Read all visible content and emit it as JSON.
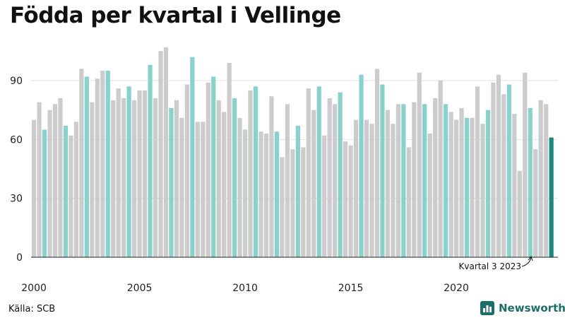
{
  "title": "Födda per kvartal i Vellinge",
  "source": "Källa: SCB",
  "brand": {
    "name": "Newsworthy",
    "icon": "newsworthy-logo-icon"
  },
  "colors": {
    "default": "#cccccc",
    "highlight": "#87d3cc",
    "latest": "#178a7e",
    "axis": "#222222",
    "grid": "#e2e2e2"
  },
  "chart_data": {
    "type": "bar",
    "title": "Födda per kvartal i Vellinge",
    "ylim": [
      0,
      105
    ],
    "yticks": [
      0,
      30,
      60,
      90
    ],
    "xtick_labels": [
      "2000",
      "2005",
      "2010",
      "2015",
      "2020"
    ],
    "highlight_rule": "Kvartal 3 of each year highlighted; latest quarter in dark teal",
    "annotation": "Kvartal 3 2023",
    "grid": "horizontal",
    "quarters_start": "2000 Q1",
    "values": [
      70,
      79,
      65,
      75,
      78,
      81,
      67,
      62,
      69,
      96,
      92,
      79,
      91,
      95,
      95,
      80,
      86,
      81,
      87,
      80,
      85,
      85,
      98,
      81,
      105,
      107,
      76,
      80,
      71,
      88,
      102,
      69,
      69,
      89,
      92,
      80,
      74,
      99,
      81,
      71,
      65,
      85,
      87,
      64,
      63,
      82,
      64,
      51,
      78,
      55,
      67,
      56,
      86,
      75,
      87,
      62,
      81,
      78,
      84,
      59,
      57,
      70,
      93,
      70,
      68,
      96,
      88,
      75,
      68,
      78,
      78,
      56,
      79,
      94,
      78,
      63,
      81,
      90,
      78,
      74,
      70,
      76,
      71,
      71,
      87,
      68,
      75,
      89,
      93,
      83,
      88,
      73,
      44,
      94,
      76,
      55,
      80,
      78,
      61
    ]
  }
}
